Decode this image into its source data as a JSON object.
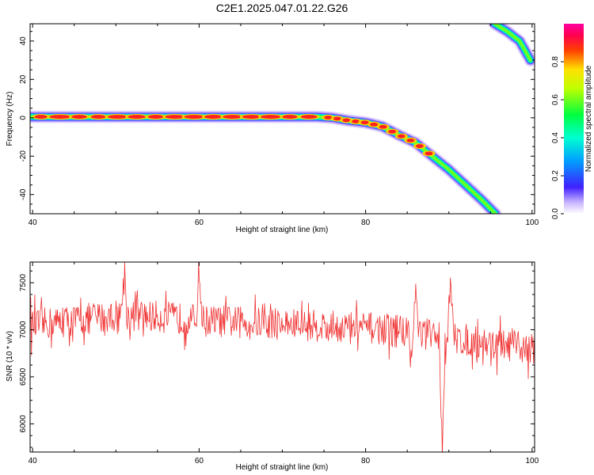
{
  "title": "C2E1.2025.047.01.22.G26",
  "chart_data": [
    {
      "type": "heatmap",
      "xlabel": "Height of straight line (km)",
      "ylabel": "Frequency (Hz)",
      "xlim": [
        39.7,
        100.3
      ],
      "ylim": [
        -50,
        49
      ],
      "xticks": [
        40,
        60,
        80,
        100
      ],
      "yticks": [
        -40,
        -20,
        0,
        20,
        40
      ],
      "colorbar": {
        "label": "Normalized spectral amplitude",
        "ticks": [
          0.0,
          0.2,
          0.4,
          0.6,
          0.8
        ],
        "range": [
          0,
          1
        ]
      },
      "ridge": [
        {
          "x": 39.7,
          "y": 0.5
        },
        {
          "x": 50,
          "y": 0.5
        },
        {
          "x": 60,
          "y": 0.5
        },
        {
          "x": 70,
          "y": 0.5
        },
        {
          "x": 74,
          "y": 0.5
        },
        {
          "x": 76,
          "y": 0
        },
        {
          "x": 78,
          "y": -1.5
        },
        {
          "x": 80,
          "y": -2.5
        },
        {
          "x": 82,
          "y": -4.5
        },
        {
          "x": 84,
          "y": -9
        },
        {
          "x": 86,
          "y": -13
        },
        {
          "x": 88,
          "y": -20
        },
        {
          "x": 90,
          "y": -27
        },
        {
          "x": 92,
          "y": -35
        },
        {
          "x": 94,
          "y": -43
        },
        {
          "x": 95.6,
          "y": -50
        }
      ],
      "alias_ridge": [
        {
          "x": 95.5,
          "y": 49
        },
        {
          "x": 97,
          "y": 45
        },
        {
          "x": 98.5,
          "y": 40
        },
        {
          "x": 99.8,
          "y": 30
        }
      ]
    },
    {
      "type": "line",
      "xlabel": "Height of straight line (km)",
      "ylabel": "SNR (10 * v/v)",
      "xlim": [
        39.7,
        100.3
      ],
      "ylim": [
        5700,
        7720
      ],
      "xticks": [
        40,
        60,
        80,
        100
      ],
      "yticks": [
        6000,
        6500,
        7000,
        7500
      ],
      "series": [
        {
          "color": "#f03030",
          "trend": [
            {
              "x": 40,
              "y": 7050
            },
            {
              "x": 45,
              "y": 7100
            },
            {
              "x": 50,
              "y": 7150
            },
            {
              "x": 55,
              "y": 7140
            },
            {
              "x": 60,
              "y": 7100
            },
            {
              "x": 65,
              "y": 7080
            },
            {
              "x": 70,
              "y": 7060
            },
            {
              "x": 75,
              "y": 7040
            },
            {
              "x": 80,
              "y": 7020
            },
            {
              "x": 85,
              "y": 6990
            },
            {
              "x": 90,
              "y": 6920
            },
            {
              "x": 95,
              "y": 6850
            },
            {
              "x": 100,
              "y": 6800
            }
          ],
          "spikes": [
            {
              "x": 51,
              "y": 7690
            },
            {
              "x": 60,
              "y": 7680
            },
            {
              "x": 85.5,
              "y": 6650
            },
            {
              "x": 89.2,
              "y": 5730
            },
            {
              "x": 90.2,
              "y": 7530
            },
            {
              "x": 86,
              "y": 7450
            }
          ]
        }
      ]
    }
  ]
}
